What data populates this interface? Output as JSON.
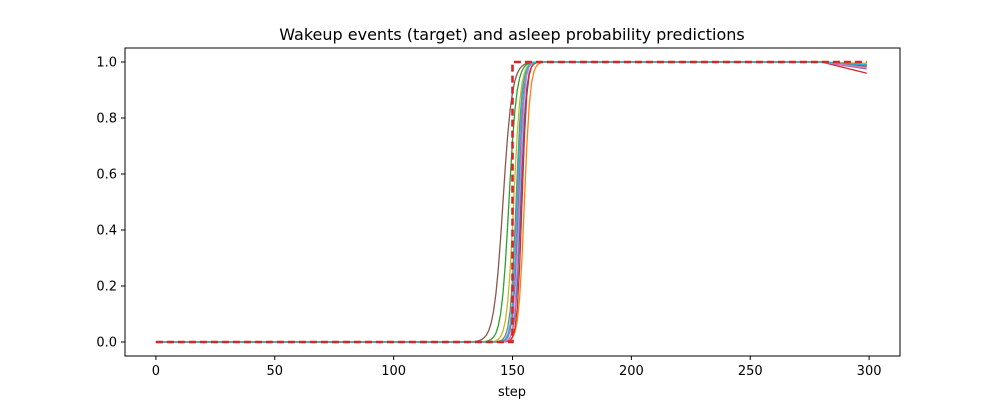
{
  "chart_data": {
    "type": "line",
    "title": "Wakeup events (target) and asleep probability predictions",
    "xlabel": "step",
    "ylabel": "",
    "xlim": [
      -13,
      313
    ],
    "ylim": [
      -0.05,
      1.05
    ],
    "xticks": [
      0,
      50,
      100,
      150,
      200,
      250,
      300
    ],
    "yticks": [
      0.0,
      0.2,
      0.4,
      0.6,
      0.8,
      1.0
    ],
    "xtick_labels": [
      "0",
      "50",
      "100",
      "150",
      "200",
      "250",
      "300"
    ],
    "ytick_labels": [
      "0.0",
      "0.2",
      "0.4",
      "0.6",
      "0.8",
      "1.0"
    ],
    "grid": false,
    "legend": false,
    "target": {
      "color": "#d62728",
      "dashed": true,
      "x": [
        0,
        150,
        150,
        299
      ],
      "y": [
        0,
        0,
        1,
        1
      ]
    },
    "series": [
      {
        "color": "#1f77b4",
        "midpoint": 153.5,
        "width": 1.1,
        "end_value": 0.99
      },
      {
        "color": "#ff7f0e",
        "midpoint": 155.0,
        "width": 1.2,
        "end_value": 0.985
      },
      {
        "color": "#2ca02c",
        "midpoint": 148.5,
        "width": 1.6,
        "end_value": 0.99
      },
      {
        "color": "#d62728",
        "midpoint": 154.0,
        "width": 1.0,
        "end_value": 0.96
      },
      {
        "color": "#9467bd",
        "midpoint": 152.5,
        "width": 1.1,
        "end_value": 0.975
      },
      {
        "color": "#8c564b",
        "midpoint": 146.0,
        "width": 1.9,
        "end_value": 0.985
      },
      {
        "color": "#e377c2",
        "midpoint": 153.0,
        "width": 1.0,
        "end_value": 0.98
      },
      {
        "color": "#7f7f7f",
        "midpoint": 151.5,
        "width": 1.2,
        "end_value": 0.99
      },
      {
        "color": "#bcbd22",
        "midpoint": 150.5,
        "width": 1.4,
        "end_value": 0.995
      },
      {
        "color": "#17becf",
        "midpoint": 152.0,
        "width": 1.1,
        "end_value": 0.99
      }
    ]
  }
}
